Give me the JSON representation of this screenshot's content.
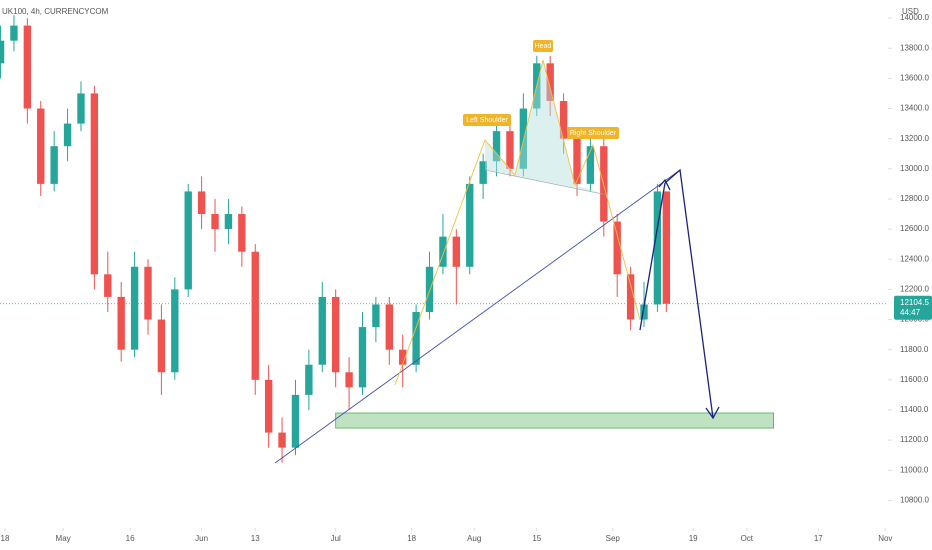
{
  "chart_data": {
    "type": "candlestick",
    "title": "UK100, 4h, CURRENCYCOM",
    "currency": "USD",
    "x": [
      -1,
      2,
      5,
      8,
      11,
      14,
      17,
      20,
      23,
      26,
      29,
      32,
      35,
      38,
      41,
      44,
      47,
      50,
      53,
      56,
      59,
      62,
      65,
      68,
      71,
      74,
      77,
      80,
      83,
      86,
      89,
      92,
      95,
      98,
      101,
      104,
      107,
      110,
      113,
      116,
      119,
      122,
      125,
      128,
      131,
      134,
      137,
      140,
      143,
      146,
      148
    ],
    "open": [
      13700,
      13850,
      13950,
      13400,
      12900,
      13150,
      13300,
      13500,
      12300,
      12150,
      11800,
      12350,
      12000,
      11650,
      12200,
      12850,
      12700,
      12600,
      12700,
      12450,
      11600,
      11250,
      11150,
      11500,
      11700,
      12150,
      11650,
      11550,
      11950,
      12100,
      11800,
      11700,
      12050,
      12350,
      12550,
      12350,
      12900,
      13050,
      13250,
      13000,
      13400,
      13700,
      13450,
      13200,
      12900,
      13150,
      12650,
      12300,
      12000,
      12100,
      12850
    ],
    "high": [
      13950,
      14020,
      14000,
      13450,
      13250,
      13400,
      13580,
      13550,
      12450,
      12250,
      12450,
      12400,
      12100,
      12280,
      12900,
      12950,
      12800,
      12800,
      12750,
      12500,
      11700,
      11350,
      11600,
      11800,
      12250,
      12200,
      11750,
      12050,
      12150,
      12150,
      11900,
      12100,
      12450,
      12700,
      12600,
      12950,
      13100,
      13300,
      13300,
      13500,
      13750,
      13750,
      13500,
      13250,
      13200,
      13200,
      12700,
      12350,
      12250,
      12900,
      12850
    ],
    "low": [
      13600,
      13780,
      13300,
      12820,
      12850,
      13050,
      13250,
      12200,
      12050,
      11720,
      11750,
      11900,
      11500,
      11600,
      12150,
      12600,
      12450,
      12500,
      12350,
      11500,
      11150,
      11050,
      11100,
      11400,
      11650,
      11550,
      11400,
      11500,
      11850,
      11700,
      11550,
      11650,
      12000,
      12300,
      12100,
      12300,
      12800,
      12950,
      12950,
      12950,
      13350,
      13350,
      13100,
      12820,
      12850,
      12550,
      12150,
      11930,
      11950,
      12050,
      12050
    ],
    "close": [
      13850,
      13950,
      13400,
      12900,
      13150,
      13300,
      13500,
      12300,
      12150,
      11800,
      12350,
      12000,
      11650,
      12200,
      12850,
      12700,
      12600,
      12700,
      12450,
      11600,
      11250,
      11150,
      11500,
      11700,
      12150,
      11650,
      11550,
      11950,
      12100,
      11800,
      11700,
      12050,
      12350,
      12550,
      12350,
      12900,
      13050,
      13250,
      13000,
      13400,
      13700,
      13450,
      13200,
      12900,
      13150,
      12650,
      12300,
      12000,
      12100,
      12850,
      12104.5
    ],
    "up_color": "#26a69a",
    "down_color": "#ef5350",
    "xlim": [
      -1.12,
      197.6
    ],
    "ylim": [
      10670,
      14120
    ],
    "xticks": [
      {
        "value": 0,
        "label": "18"
      },
      {
        "value": 13,
        "label": "May"
      },
      {
        "value": 28,
        "label": "16"
      },
      {
        "value": 44,
        "label": "Jun"
      },
      {
        "value": 56,
        "label": "13"
      },
      {
        "value": 74,
        "label": "Jul"
      },
      {
        "value": 91,
        "label": "18"
      },
      {
        "value": 105,
        "label": "Aug"
      },
      {
        "value": 119,
        "label": "15"
      },
      {
        "value": 136,
        "label": "Sep"
      },
      {
        "value": 154,
        "label": "19"
      },
      {
        "value": 166,
        "label": "Oct"
      },
      {
        "value": 182,
        "label": "17"
      },
      {
        "value": 197,
        "label": "Nov"
      }
    ],
    "yticks": [
      {
        "value": 10800,
        "label": "10800.0"
      },
      {
        "value": 11000,
        "label": "11000.0"
      },
      {
        "value": 11200,
        "label": "11200.0"
      },
      {
        "value": 11400,
        "label": "11400.0"
      },
      {
        "value": 11600,
        "label": "11600.0"
      },
      {
        "value": 11800,
        "label": "11800.0"
      },
      {
        "value": 12000,
        "label": "12000.0"
      },
      {
        "value": 12200,
        "label": "12200.0"
      },
      {
        "value": 12400,
        "label": "12400.0"
      },
      {
        "value": 12600,
        "label": "12600.0"
      },
      {
        "value": 12800,
        "label": "12800.0"
      },
      {
        "value": 13000,
        "label": "13000.0"
      },
      {
        "value": 13200,
        "label": "13200.0"
      },
      {
        "value": 13400,
        "label": "13400.0"
      },
      {
        "value": 13600,
        "label": "13600.0"
      },
      {
        "value": 13800,
        "label": "13800.0"
      },
      {
        "value": 14000,
        "label": "14000.0"
      }
    ],
    "last_price": 12104.5,
    "countdown": "44:47",
    "zone": {
      "x": [
        74,
        172
      ],
      "y": [
        11280,
        11380
      ],
      "color": "#a5d6a7"
    },
    "annotations": [
      "Head",
      "Left Shoulder",
      "Right Shoulder"
    ]
  }
}
